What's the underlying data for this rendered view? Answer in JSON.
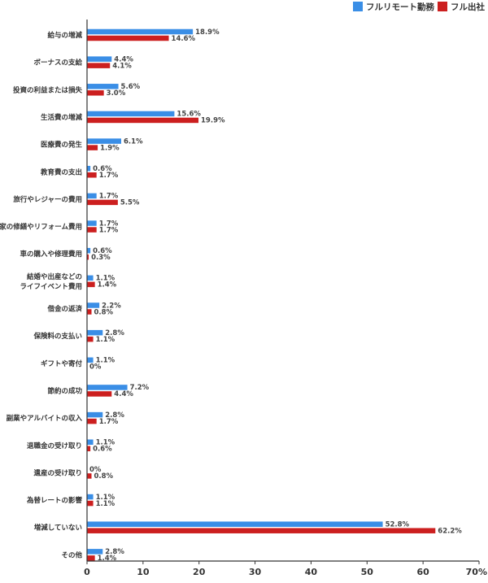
{
  "chart_data": {
    "type": "bar",
    "orientation": "horizontal",
    "categories": [
      "給与の増減",
      "ボーナスの支給",
      "投資の利益または損失",
      "生活費の増減",
      "医療費の発生",
      "教育費の支出",
      "旅行やレジャーの費用",
      "家の修繕やリフォーム費用",
      "車の購入や修理費用",
      "結婚や出産などの\nライフイベント費用",
      "借金の返済",
      "保険料の支払い",
      "ギフトや寄付",
      "節約の成功",
      "副業やアルバイトの収入",
      "退職金の受け取り",
      "遺産の受け取り",
      "為替レートの影響",
      "増減していない",
      "その他"
    ],
    "series": [
      {
        "name": "フルリモート勤務",
        "color": "#3a8ee6",
        "values": [
          18.9,
          4.4,
          5.6,
          15.6,
          6.1,
          0.6,
          1.7,
          1.7,
          0.6,
          1.1,
          2.2,
          2.8,
          1.1,
          7.2,
          2.8,
          1.1,
          0,
          1.1,
          52.8,
          2.8
        ],
        "labels": [
          "18.9%",
          "4.4%",
          "5.6%",
          "15.6%",
          "6.1%",
          "0.6%",
          "1.7%",
          "1.7%",
          "0.6%",
          "1.1%",
          "2.2%",
          "2.8%",
          "1.1%",
          "7.2%",
          "2.8%",
          "1.1%",
          "0%",
          "1.1%",
          "52.8%",
          "2.8%"
        ]
      },
      {
        "name": "フル出社",
        "color": "#cc1f1f",
        "values": [
          14.6,
          4.1,
          3.0,
          19.9,
          1.9,
          1.7,
          5.5,
          1.7,
          0.3,
          1.4,
          0.8,
          1.1,
          0,
          4.4,
          1.7,
          0.6,
          0.8,
          1.1,
          62.2,
          1.4
        ],
        "labels": [
          "14.6%",
          "4.1%",
          "3.0%",
          "19.9%",
          "1.9%",
          "1.7%",
          "5.5%",
          "1.7%",
          "0.3%",
          "1.4%",
          "0.8%",
          "1.1%",
          "0%",
          "4.4%",
          "1.7%",
          "0.6%",
          "0.8%",
          "1.1%",
          "62.2%",
          "1.4%"
        ]
      }
    ],
    "xlim": [
      0,
      70
    ],
    "xticks": [
      "0",
      "10",
      "20",
      "30",
      "40",
      "50",
      "60",
      "70%"
    ],
    "grid": false,
    "legend_position": "top-right"
  }
}
